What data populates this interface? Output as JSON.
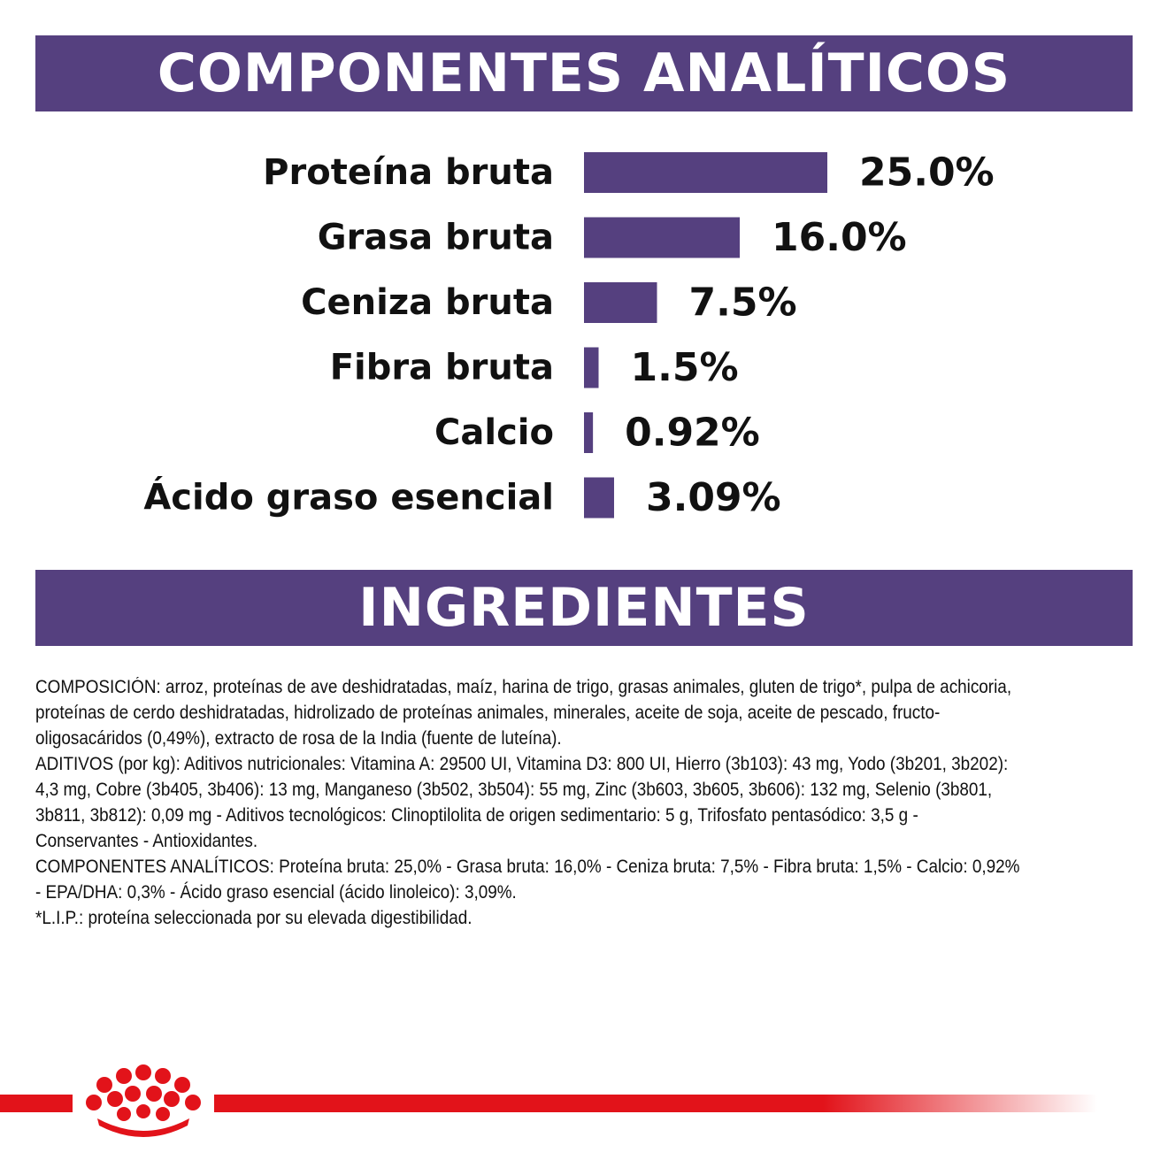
{
  "colors": {
    "accent": "#55407f",
    "brand_red": "#e2131a",
    "text": "#111111"
  },
  "banners": {
    "analytics_title": "COMPONENTES ANALÍTICOS",
    "ingredients_title": "INGREDIENTES"
  },
  "chart_data": {
    "type": "bar",
    "orientation": "horizontal",
    "categories": [
      "Proteína bruta",
      "Grasa bruta",
      "Ceniza bruta",
      "Fibra bruta",
      "Calcio",
      "Ácido graso esencial"
    ],
    "values": [
      25.0,
      16.0,
      7.5,
      1.5,
      0.92,
      3.09
    ],
    "labels": [
      "25.0%",
      "16.0%",
      "7.5%",
      "1.5%",
      "0.92%",
      "3.09%"
    ],
    "unit": "%",
    "grid": false,
    "legend": "none"
  },
  "ingredients": {
    "paragraphs": [
      "COMPOSICIÓN: arroz, proteínas de ave deshidratadas, maíz, harina de trigo, grasas animales, gluten de trigo*, pulpa de achicoria, proteínas de cerdo deshidratadas, hidrolizado de proteínas animales, minerales, aceite de soja, aceite de pescado, fructo-oligosacáridos (0,49%), extracto de rosa de la India (fuente de luteína).",
      "ADITIVOS (por kg): Aditivos nutricionales: Vitamina A: 29500 UI, Vitamina D3: 800 UI, Hierro (3b103): 43 mg, Yodo (3b201, 3b202): 4,3 mg, Cobre (3b405, 3b406): 13 mg, Manganeso (3b502, 3b504): 55 mg, Zinc (3b603, 3b605, 3b606): 132 mg, Selenio (3b801, 3b811, 3b812): 0,09 mg - Aditivos tecnológicos: Clinoptilolita de origen sedimentario: 5 g, Trifosfato pentasódico: 3,5 g - Conservantes - Antioxidantes.",
      "COMPONENTES ANALÍTICOS: Proteína bruta: 25,0% - Grasa bruta: 16,0% - Ceniza bruta: 7,5% - Fibra bruta: 1,5% - Calcio: 0,92% - EPA/DHA: 0,3% - Ácido graso esencial (ácido linoleico): 3,09%.",
      "*L.I.P.: proteína seleccionada por su elevada digestibilidad."
    ]
  },
  "footer": {
    "logo_icon": "royal-crown-icon"
  }
}
